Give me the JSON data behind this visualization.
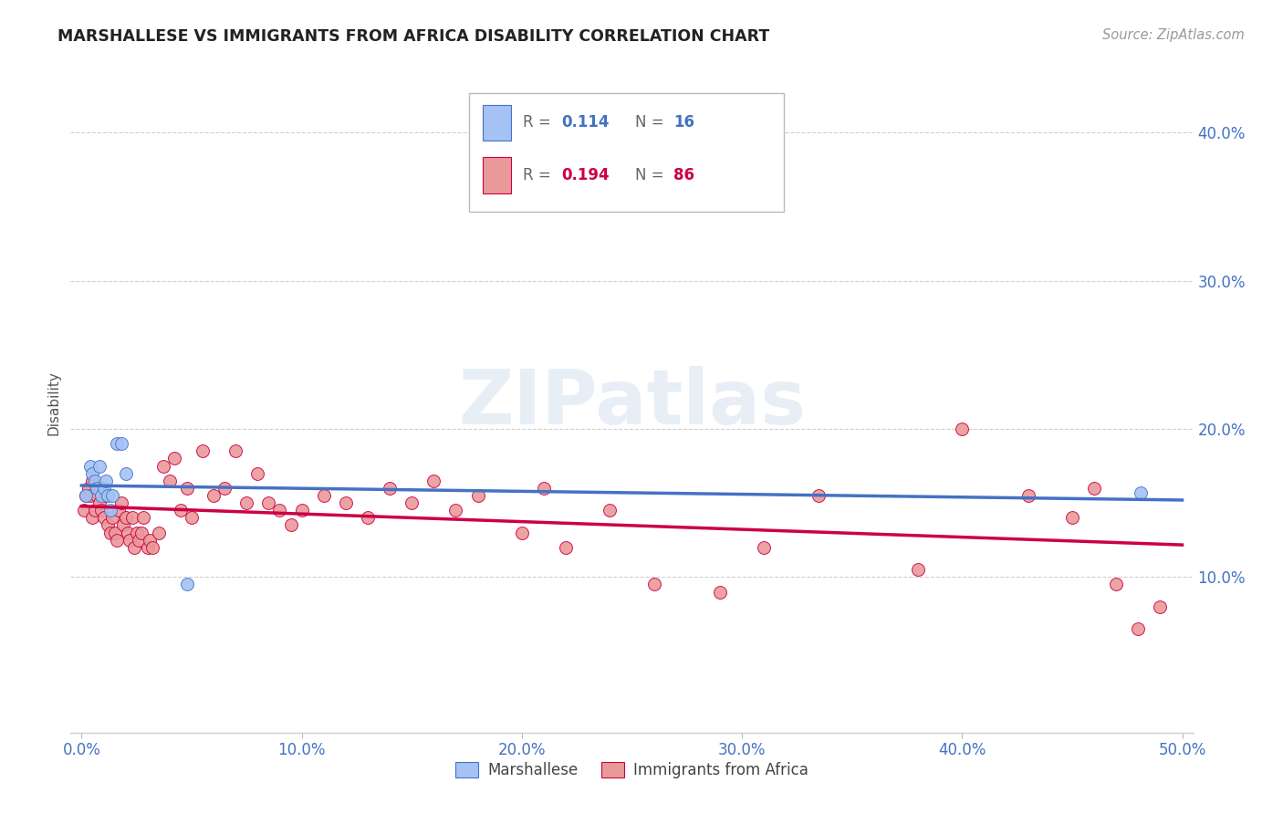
{
  "title": "MARSHALLESE VS IMMIGRANTS FROM AFRICA DISABILITY CORRELATION CHART",
  "source": "Source: ZipAtlas.com",
  "ylabel": "Disability",
  "xlim": [
    -0.005,
    0.505
  ],
  "ylim": [
    -0.005,
    0.44
  ],
  "marshallese_color": "#a4c2f4",
  "africa_color": "#ea9999",
  "trendline_marshallese_color": "#4472c4",
  "trendline_africa_color": "#cc0044",
  "watermark_text": "ZIPatlas",
  "background_color": "#ffffff",
  "grid_color": "#d0d0d0",
  "axis_label_color": "#4472c4",
  "title_color": "#222222",
  "ylabel_color": "#555555",
  "legend_text_color": "#444444",
  "marshallese_x": [
    0.002,
    0.004,
    0.005,
    0.006,
    0.007,
    0.008,
    0.009,
    0.01,
    0.011,
    0.012,
    0.013,
    0.014,
    0.016,
    0.018,
    0.02,
    0.048,
    0.481
  ],
  "marshallese_y": [
    0.155,
    0.175,
    0.17,
    0.165,
    0.16,
    0.175,
    0.155,
    0.16,
    0.165,
    0.155,
    0.145,
    0.155,
    0.19,
    0.19,
    0.17,
    0.095,
    0.157
  ],
  "africa_x": [
    0.001,
    0.002,
    0.003,
    0.004,
    0.005,
    0.005,
    0.006,
    0.007,
    0.008,
    0.009,
    0.01,
    0.011,
    0.012,
    0.013,
    0.014,
    0.015,
    0.016,
    0.017,
    0.018,
    0.019,
    0.02,
    0.021,
    0.022,
    0.023,
    0.024,
    0.025,
    0.026,
    0.027,
    0.028,
    0.03,
    0.031,
    0.032,
    0.035,
    0.037,
    0.04,
    0.042,
    0.045,
    0.048,
    0.05,
    0.055,
    0.06,
    0.065,
    0.07,
    0.075,
    0.08,
    0.085,
    0.09,
    0.095,
    0.1,
    0.11,
    0.12,
    0.13,
    0.14,
    0.15,
    0.16,
    0.17,
    0.18,
    0.2,
    0.21,
    0.22,
    0.24,
    0.26,
    0.29,
    0.31,
    0.335,
    0.38,
    0.4,
    0.43,
    0.45,
    0.46,
    0.47,
    0.48,
    0.49
  ],
  "africa_y": [
    0.145,
    0.155,
    0.16,
    0.155,
    0.14,
    0.165,
    0.145,
    0.155,
    0.15,
    0.145,
    0.14,
    0.155,
    0.135,
    0.13,
    0.14,
    0.13,
    0.125,
    0.145,
    0.15,
    0.135,
    0.14,
    0.13,
    0.125,
    0.14,
    0.12,
    0.13,
    0.125,
    0.13,
    0.14,
    0.12,
    0.125,
    0.12,
    0.13,
    0.175,
    0.165,
    0.18,
    0.145,
    0.16,
    0.14,
    0.185,
    0.155,
    0.16,
    0.185,
    0.15,
    0.17,
    0.15,
    0.145,
    0.135,
    0.145,
    0.155,
    0.15,
    0.14,
    0.16,
    0.15,
    0.165,
    0.145,
    0.155,
    0.13,
    0.16,
    0.12,
    0.145,
    0.095,
    0.09,
    0.12,
    0.155,
    0.105,
    0.2,
    0.155,
    0.14,
    0.16,
    0.095,
    0.065,
    0.08
  ]
}
